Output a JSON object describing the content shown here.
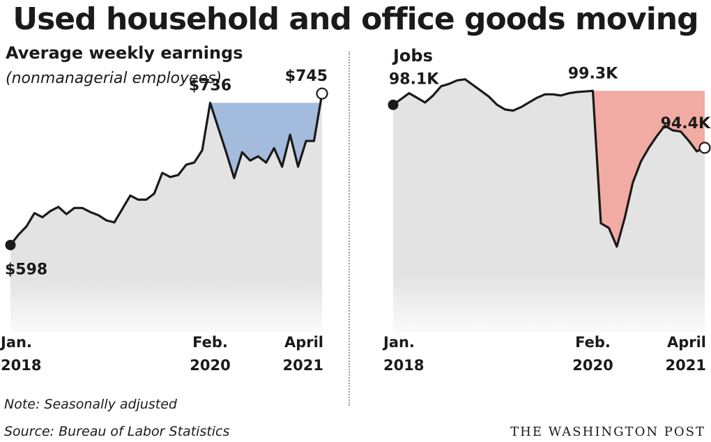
{
  "header": {
    "title": "Used household and office goods moving"
  },
  "left_panel": {
    "subtitle": "Average weekly earnings",
    "subtitle_note": "(nonmanagerial employees)"
  },
  "right_panel": {
    "subtitle": "Jobs"
  },
  "footer": {
    "note": "Note: Seasonally adjusted",
    "source": "Source: Bureau of Labor Statistics",
    "credit": "THE WASHINGTON POST"
  },
  "colors": {
    "background_fill": "#e3e3e3",
    "line": "#1a1a1a",
    "earnings_gap_fill": "#a3bbdd",
    "jobs_gap_fill": "#f2aba2"
  },
  "chart_data": [
    {
      "type": "line",
      "title": "Average weekly earnings",
      "subtitle": "(nonmanagerial employees)",
      "x_unit": "monthly, Jan. 2018 to April 2021",
      "ylim": [
        530,
        760
      ],
      "grid": false,
      "x_ticks": [
        {
          "index": 0,
          "label": [
            "Jan.",
            "2018"
          ]
        },
        {
          "index": 25,
          "label": [
            "Feb.",
            "2020"
          ]
        },
        {
          "index": 39,
          "label": [
            "April",
            "2021"
          ]
        }
      ],
      "reference": {
        "from_index": 25,
        "value": 736
      },
      "annotations": [
        {
          "index": 0,
          "text": "$598",
          "position": "below"
        },
        {
          "index": 25,
          "text": "$736",
          "position": "above"
        },
        {
          "index": 39,
          "text": "$745",
          "position": "above"
        }
      ],
      "values": [
        598,
        608,
        616,
        629,
        625,
        631,
        635,
        628,
        634,
        634,
        630,
        627,
        622,
        620,
        633,
        646,
        642,
        642,
        648,
        668,
        664,
        666,
        676,
        678,
        690,
        736,
        712,
        688,
        663,
        688,
        680,
        684,
        678,
        692,
        674,
        705,
        674,
        699,
        699,
        745
      ]
    },
    {
      "type": "line",
      "title": "Jobs",
      "x_unit": "monthly, Jan. 2018 to April 2021",
      "ylim": [
        80,
        100.4
      ],
      "grid": false,
      "x_ticks": [
        {
          "index": 0,
          "label": [
            "Jan.",
            "2018"
          ]
        },
        {
          "index": 25,
          "label": [
            "Feb.",
            "2020"
          ]
        },
        {
          "index": 39,
          "label": [
            "April",
            "2021"
          ]
        }
      ],
      "reference": {
        "from_index": 25,
        "value": 99.3
      },
      "annotations": [
        {
          "index": 0,
          "text": "98.1K",
          "position": "above"
        },
        {
          "index": 25,
          "text": "99.3K",
          "position": "above"
        },
        {
          "index": 39,
          "text": "94.4K",
          "position": "above"
        }
      ],
      "values": [
        98.1,
        98.6,
        99.1,
        98.7,
        98.3,
        98.9,
        99.7,
        99.9,
        100.2,
        100.3,
        99.8,
        99.3,
        98.8,
        98.1,
        97.7,
        97.6,
        97.9,
        98.3,
        98.7,
        99.0,
        99.0,
        98.9,
        99.1,
        99.2,
        99.25,
        99.3,
        87.9,
        87.5,
        85.9,
        88.4,
        91.4,
        93.2,
        94.4,
        95.4,
        96.3,
        95.9,
        95.8,
        95.0,
        94.1,
        94.4
      ]
    }
  ]
}
